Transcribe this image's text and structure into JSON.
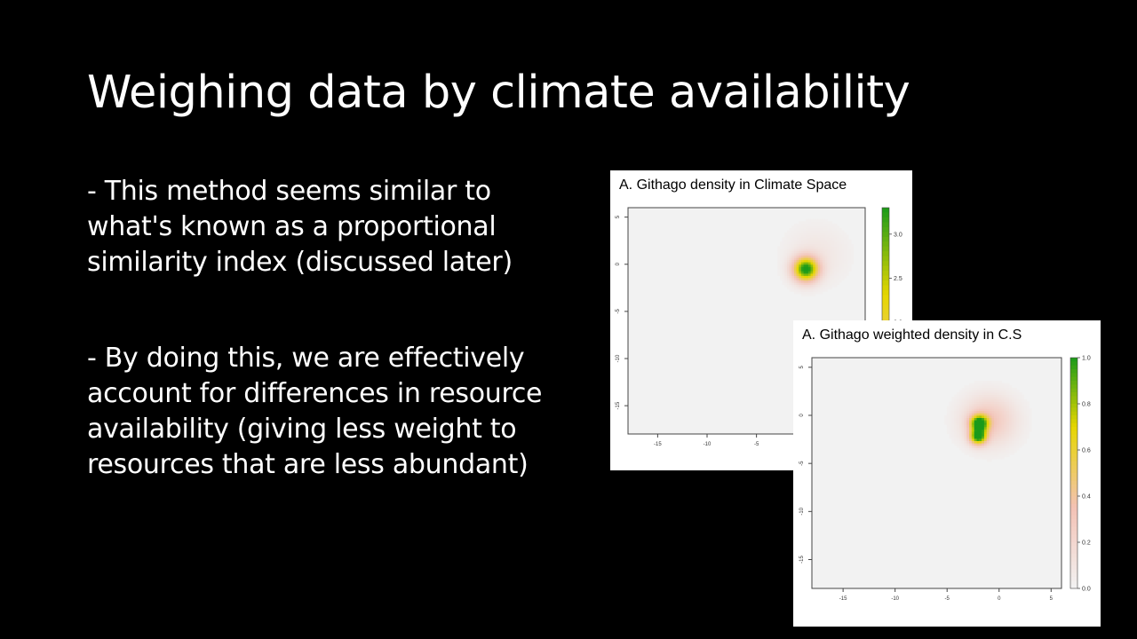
{
  "slide": {
    "title": "Weighing data by climate availability",
    "bullets": [
      "- This method seems similar to what's known as a proportional similarity index (discussed later)",
      "- By doing this, we are effectively account for differences in resource availability (giving less weight to resources that are less abundant)"
    ]
  },
  "chart_data": [
    {
      "type": "heatmap",
      "title": "A. Githago density in Climate Space",
      "xlim": [
        -18,
        6
      ],
      "ylim": [
        -18,
        6
      ],
      "x_ticks": [
        -15,
        -10,
        -5,
        0
      ],
      "y_ticks": [
        5,
        0,
        -5,
        -10,
        -15
      ],
      "colorbar": {
        "min": 0,
        "max": 3.3,
        "ticks": [
          "3.0",
          "2.5",
          "2.0"
        ]
      },
      "colors": {
        "background": "#f2f2f2",
        "low": "#f3c2b5",
        "mid": "#e6d600",
        "high": "#1a9a1a"
      },
      "hotspots": [
        {
          "x": 0.0,
          "y": -0.5,
          "value": 3.3,
          "spread": 0.9
        },
        {
          "x": 1.0,
          "y": 1.0,
          "value": 0.3,
          "spread": 2.2
        }
      ]
    },
    {
      "type": "heatmap",
      "title": "A. Githago weighted density in C.S",
      "xlim": [
        -18,
        6
      ],
      "ylim": [
        -18,
        6
      ],
      "x_ticks": [
        -15,
        -10,
        -5,
        0,
        5
      ],
      "y_ticks": [
        5,
        0,
        -5,
        -10,
        -15
      ],
      "colorbar": {
        "min": 0,
        "max": 1.0,
        "ticks": [
          "1.0",
          "0.8",
          "0.6",
          "0.4",
          "0.2",
          "0.0"
        ]
      },
      "colors": {
        "background": "#f2f2f2",
        "low": "#f3c2b5",
        "mid": "#e6d600",
        "high": "#1a9a1a"
      },
      "hotspots": [
        {
          "x": -1.9,
          "y": -0.8,
          "value": 1.0,
          "spread": 0.6
        },
        {
          "x": -2.0,
          "y": -2.2,
          "value": 0.95,
          "spread": 0.55
        },
        {
          "x": -1.0,
          "y": -0.5,
          "value": 0.3,
          "spread": 1.8
        }
      ]
    }
  ]
}
